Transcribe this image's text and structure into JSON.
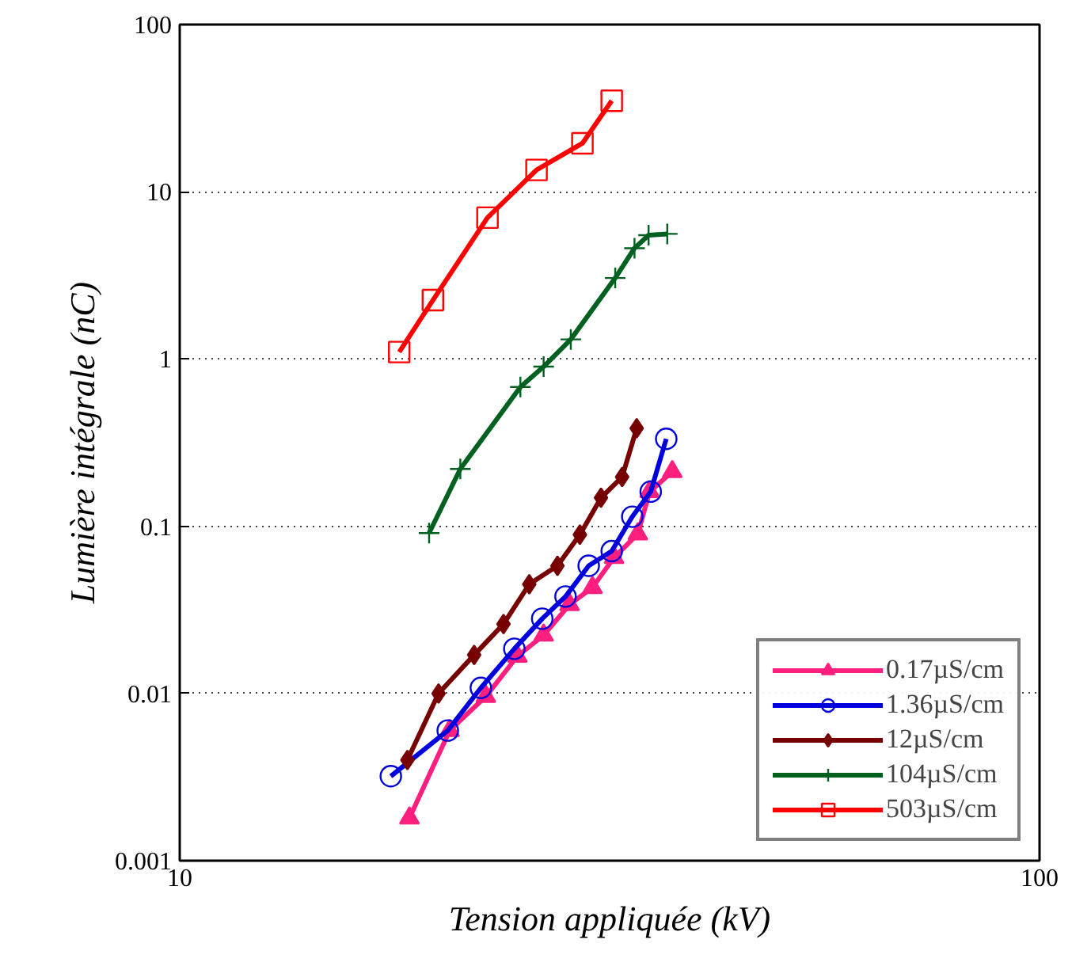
{
  "chart_data": {
    "type": "line",
    "xlabel": "Tension appliquée (kV)",
    "ylabel": "Lumière intégrale (nC)",
    "log": "xy",
    "xlim": [
      10,
      100
    ],
    "ylim": [
      0.001,
      100
    ],
    "xticks": [
      10,
      100
    ],
    "yticks": [
      0.001,
      0.01,
      0.1,
      1,
      10,
      100
    ],
    "grid": "y",
    "legend": "bottom right",
    "line_style": "solid",
    "series": [
      {
        "name": "0.17µS/cm",
        "color": "#ff1f7f",
        "marker": "triangle",
        "x": [
          18.5,
          20.6,
          22.7,
          24.7,
          26.5,
          28.4,
          30.2,
          32.0,
          34.1,
          35.2,
          37.4
        ],
        "values": [
          0.0018,
          0.006,
          0.0096,
          0.0167,
          0.0223,
          0.034,
          0.043,
          0.065,
          0.09,
          0.161,
          0.212
        ]
      },
      {
        "name": "1.36µS/cm",
        "color": "#0000dd",
        "marker": "circle",
        "x": [
          17.6,
          20.5,
          22.4,
          24.5,
          26.4,
          28.1,
          29.9,
          31.8,
          33.6,
          35.3,
          36.8
        ],
        "values": [
          0.0032,
          0.006,
          0.0108,
          0.0185,
          0.028,
          0.038,
          0.058,
          0.071,
          0.114,
          0.161,
          0.333
        ]
      },
      {
        "name": "12µS/cm",
        "color": "#770000",
        "marker": "diamond",
        "x": [
          18.4,
          20.0,
          22.0,
          23.8,
          25.5,
          27.5,
          29.2,
          30.9,
          32.7,
          34.0
        ],
        "values": [
          0.004,
          0.01,
          0.017,
          0.026,
          0.045,
          0.058,
          0.089,
          0.148,
          0.197,
          0.385
        ]
      },
      {
        "name": "104µS/cm",
        "color": "#006020",
        "marker": "cross",
        "x": [
          19.5,
          21.2,
          24.9,
          26.5,
          28.5,
          32.1,
          33.8,
          35.1,
          36.9
        ],
        "values": [
          0.091,
          0.22,
          0.68,
          0.9,
          1.31,
          3.05,
          4.6,
          5.5,
          5.6
        ]
      },
      {
        "name": "503µS/cm",
        "color": "#ff0000",
        "marker": "square",
        "x": [
          18.0,
          19.7,
          22.8,
          26.0,
          29.4,
          31.8
        ],
        "values": [
          1.1,
          2.25,
          7.0,
          13.5,
          19.5,
          35
        ]
      }
    ]
  }
}
